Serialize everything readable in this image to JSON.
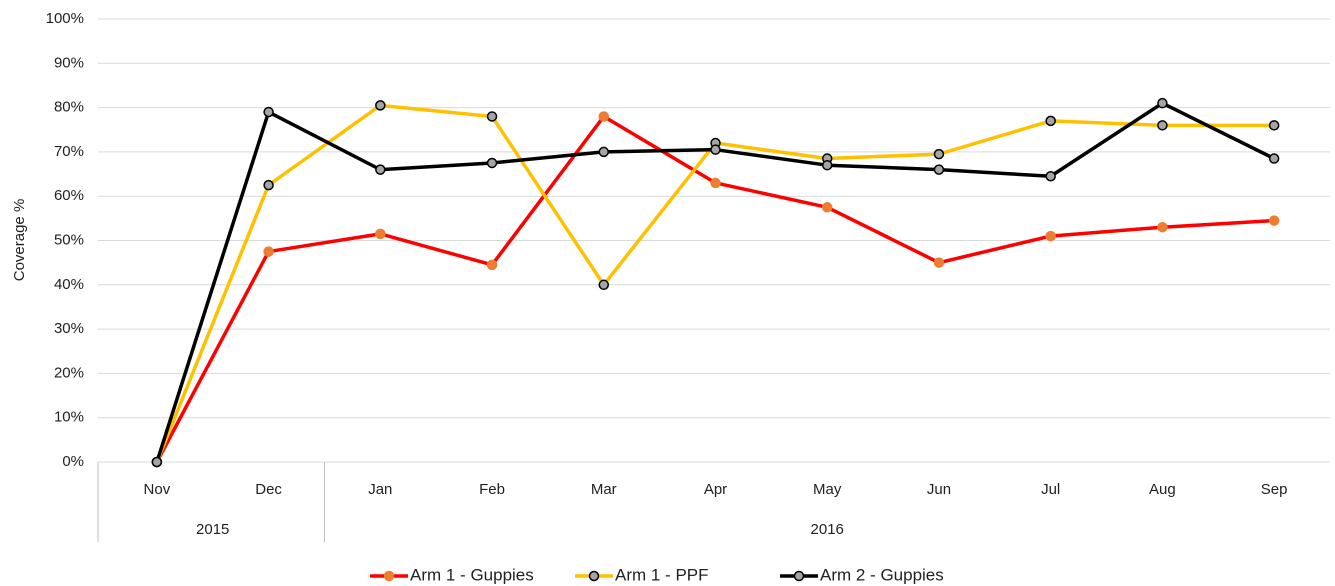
{
  "chart_data": {
    "type": "line",
    "ylabel": "Coverage %",
    "categories": [
      "Nov",
      "Dec",
      "Jan",
      "Feb",
      "Mar",
      "Apr",
      "May",
      "Jun",
      "Jul",
      "Aug",
      "Sep"
    ],
    "category_groups": [
      {
        "label": "2015",
        "span": 2
      },
      {
        "label": "2016",
        "span": 9
      }
    ],
    "series": [
      {
        "name": "Arm 1 - Guppies",
        "color": "#ff0000",
        "marker_color": "#ed7d31",
        "values": [
          0,
          47.5,
          51.5,
          44.5,
          78,
          63,
          57.5,
          45,
          51,
          53,
          54.5
        ]
      },
      {
        "name": "Arm 1 - PPF",
        "color": "#ffc000",
        "marker_color": "#a5a5a5",
        "values": [
          0,
          62.5,
          80.5,
          78,
          40,
          72,
          68.5,
          69.5,
          77,
          76,
          76
        ]
      },
      {
        "name": "Arm 2 - Guppies",
        "color": "#000000",
        "marker_color": "#a5a5a5",
        "values": [
          0,
          79,
          66,
          67.5,
          70,
          70.5,
          67,
          66,
          64.5,
          81,
          68.5
        ]
      }
    ],
    "ylim": [
      0,
      100
    ],
    "yticks": [
      {
        "value": 0,
        "label": "0%"
      },
      {
        "value": 10,
        "label": "10%"
      },
      {
        "value": 20,
        "label": "20%"
      },
      {
        "value": 30,
        "label": "30%"
      },
      {
        "value": 40,
        "label": "40%"
      },
      {
        "value": 50,
        "label": "50%"
      },
      {
        "value": 60,
        "label": "60%"
      },
      {
        "value": 70,
        "label": "70%"
      },
      {
        "value": 80,
        "label": "80%"
      },
      {
        "value": 90,
        "label": "90%"
      },
      {
        "value": 100,
        "label": "100%"
      }
    ],
    "grid": true,
    "legend": "bottom"
  }
}
